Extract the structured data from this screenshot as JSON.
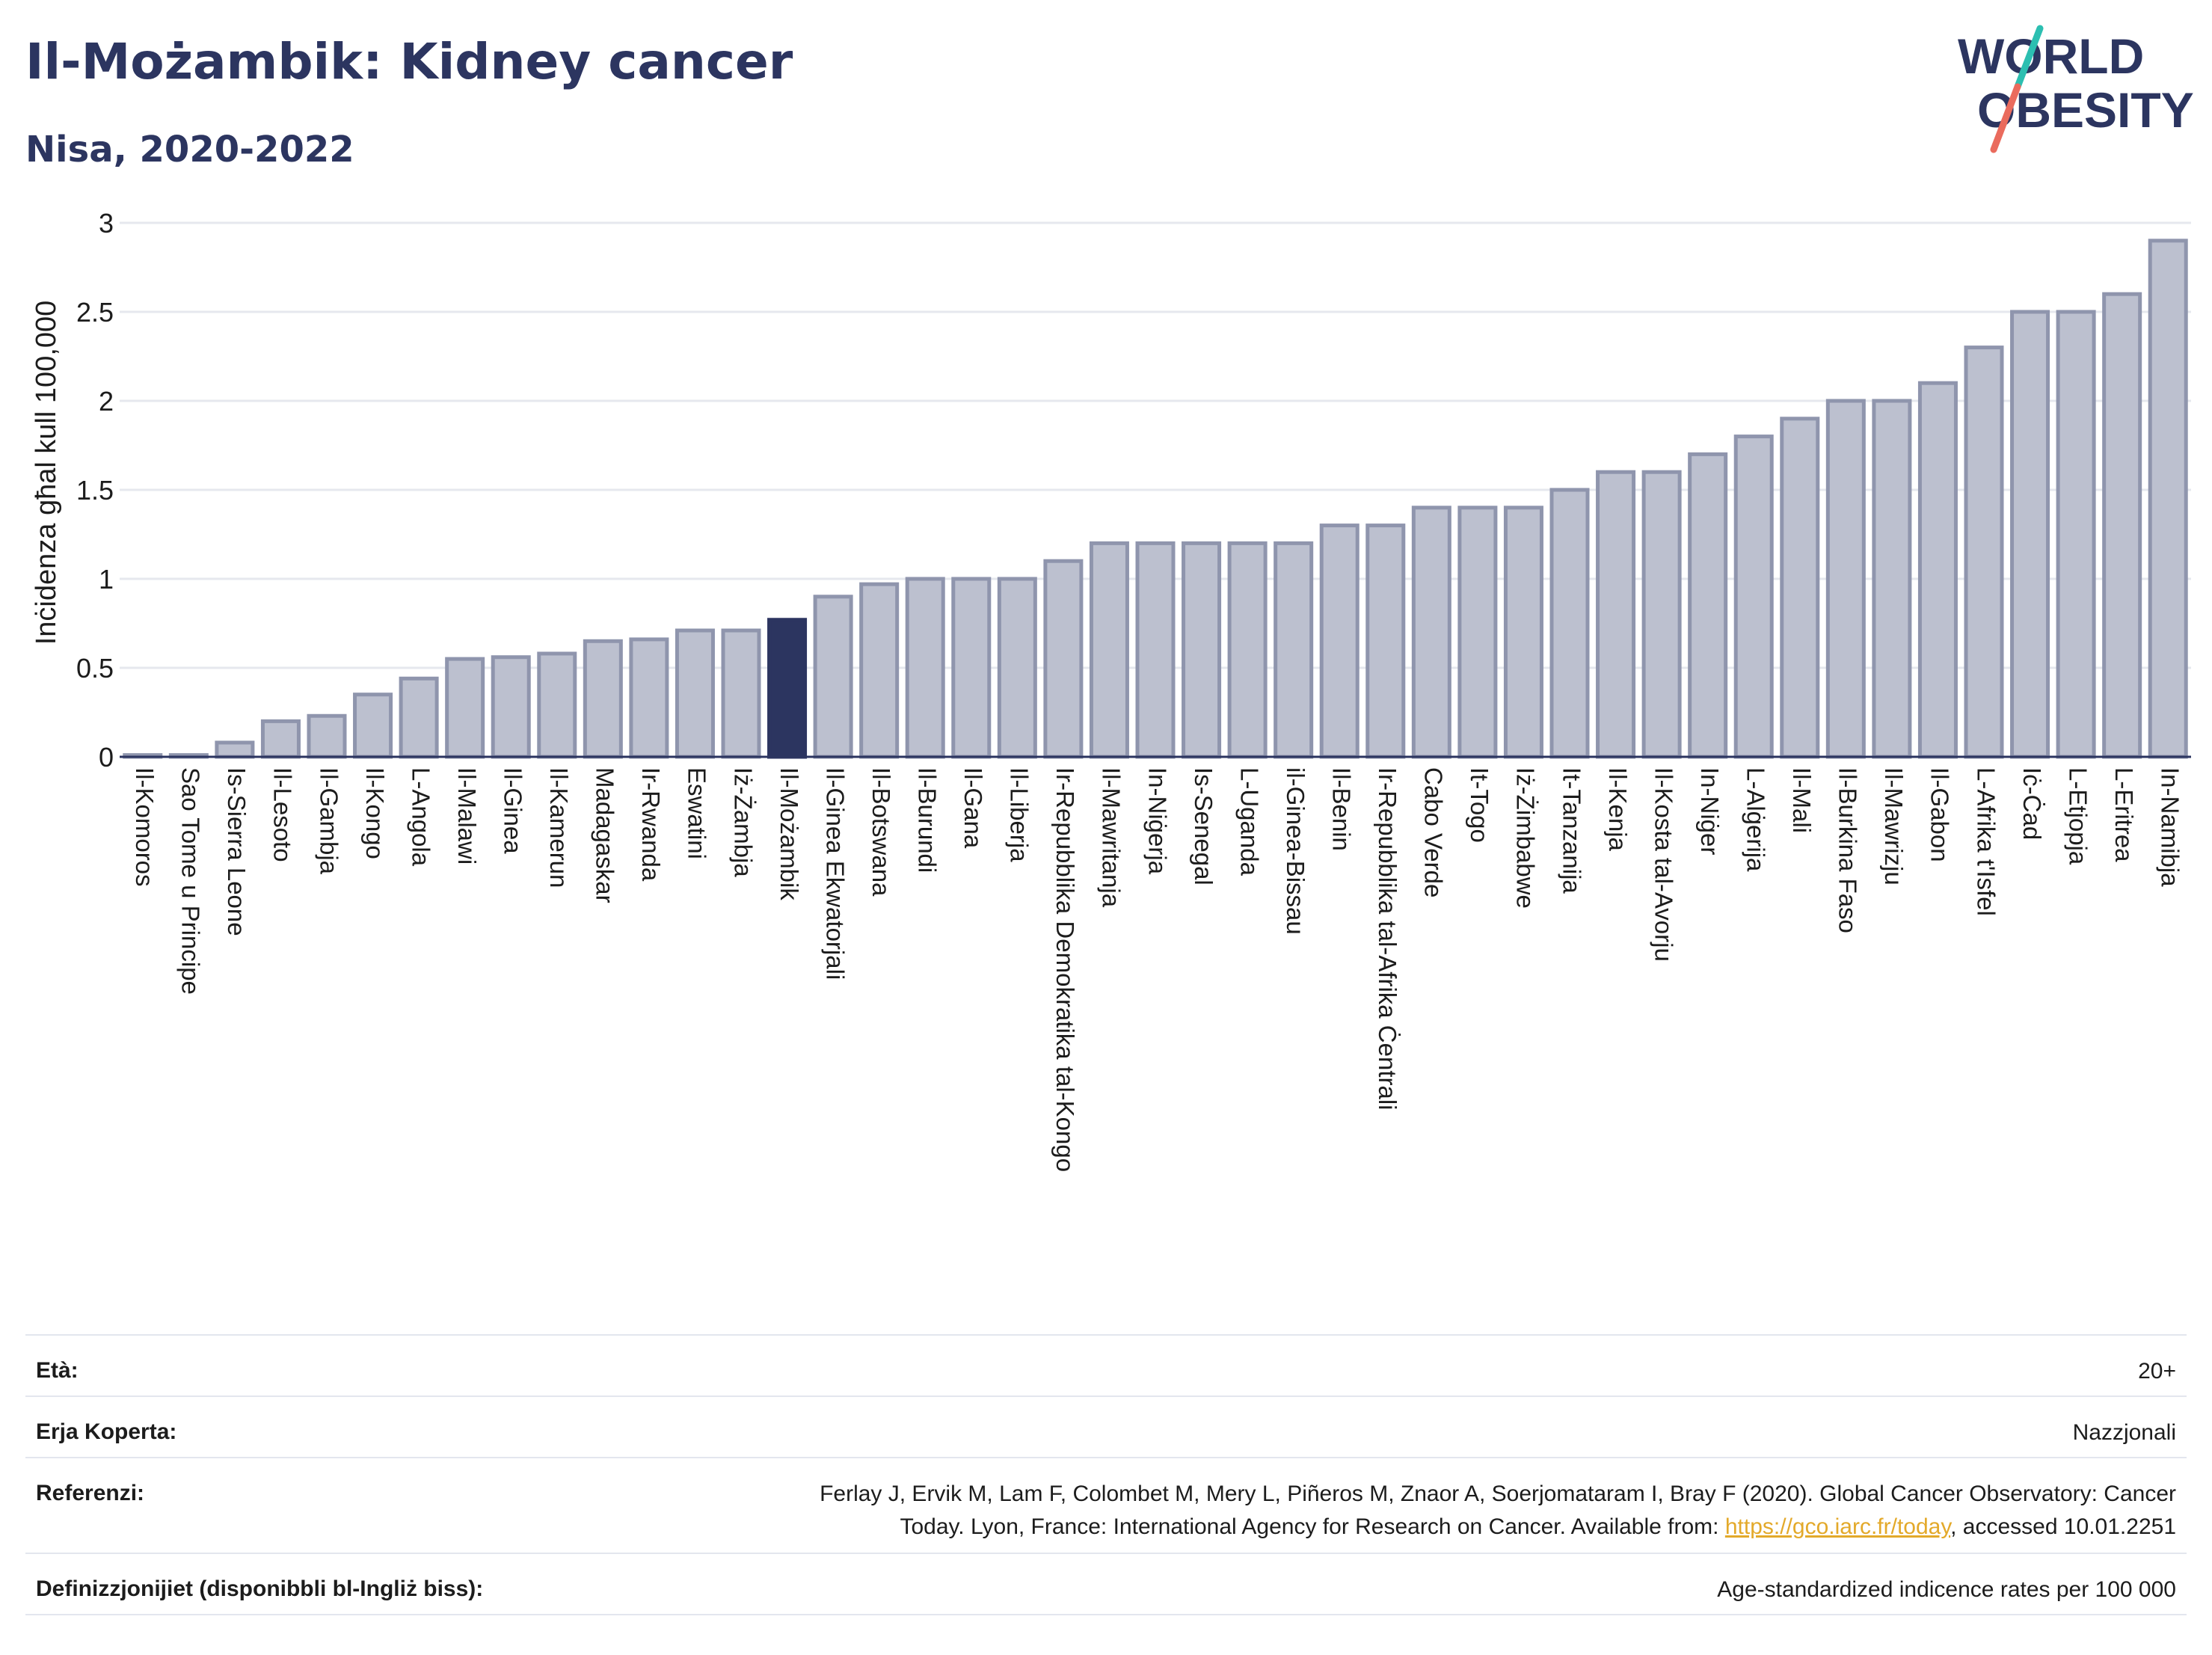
{
  "header": {
    "title": "Il-Możambik: Kidney cancer",
    "subtitle": "Nisa, 2020-2022"
  },
  "logo": {
    "line1": "WORLD",
    "line2": "OBESITY",
    "colors": {
      "text": "#2c3560",
      "slash_teal": "#2cbfb1",
      "slash_coral": "#ea6b5d"
    }
  },
  "chart_data": {
    "type": "bar",
    "ylabel": "Inċidenza għal kull 100,000",
    "ylim": [
      0,
      3
    ],
    "yticks": [
      "0",
      "0.5",
      "1",
      "1.5",
      "2",
      "2.5",
      "3"
    ],
    "grid": true,
    "highlight": "Il-Możambik",
    "colors": {
      "bar": "#bcc0cf",
      "bar_edge": "#8f95ad",
      "highlight": "#2c3560",
      "grid": "#e6e8ee",
      "axis": "#2c3560"
    },
    "categories": [
      "Il-Komoros",
      "Sao Tome u Principe",
      "Is-Sierra Leone",
      "Il-Lesoto",
      "Il-Gambja",
      "Il-Kongo",
      "L-Angola",
      "Il-Malawi",
      "Il-Ginea",
      "Il-Kamerun",
      "Madagaskar",
      "Ir-Rwanda",
      "Eswatini",
      "Iż-Żambja",
      "Il-Możambik",
      "Il-Ginea Ekwatorjali",
      "Il-Botswana",
      "Il-Burundi",
      "Il-Gana",
      "Il-Liberja",
      "Ir-Repubblika Demokratika tal-Kongo",
      "Il-Mawritanja",
      "In-Niġerja",
      "Is-Senegal",
      "L-Uganda",
      "il-Ginea-Bissau",
      "Il-Benin",
      "Ir-Repubblika tal-Afrika Ċentrali",
      "Cabo Verde",
      "It-Togo",
      "Iż-Żimbabwe",
      "It-Tanzanija",
      "Il-Kenja",
      "Il-Kosta tal-Avorju",
      "In-Niġer",
      "L-Alġerija",
      "Il-Mali",
      "Il-Burkina Faso",
      "Il-Mawrizju",
      "Il-Gabon",
      "L-Afrika t'Isfel",
      "Iċ-Ċad",
      "L-Etjopja",
      "L-Eritrea",
      "In-Namibja"
    ],
    "values": [
      0.01,
      0.01,
      0.08,
      0.2,
      0.23,
      0.35,
      0.44,
      0.55,
      0.56,
      0.58,
      0.65,
      0.66,
      0.71,
      0.71,
      0.77,
      0.9,
      0.97,
      1.0,
      1.0,
      1.0,
      1.1,
      1.2,
      1.2,
      1.2,
      1.2,
      1.2,
      1.3,
      1.3,
      1.4,
      1.4,
      1.4,
      1.5,
      1.6,
      1.6,
      1.7,
      1.8,
      1.9,
      2.0,
      2.0,
      2.1,
      2.3,
      2.5,
      2.5,
      2.6,
      2.9
    ]
  },
  "info": {
    "age_label": "Età:",
    "age_value": "20+",
    "coverage_label": "Erja Koperta:",
    "coverage_value": "Nazzjonali",
    "refs_label": "Referenzi:",
    "refs_line1": "Ferlay J, Ervik M, Lam F, Colombet M, Mery L, Piñeros M, Znaor A, Soerjomataram I, Bray F (2020). Global Cancer Observatory: Cancer",
    "refs_line2_pre": "Today. Lyon, France: International Agency for Research on Cancer. Available from: ",
    "refs_link": "https://gco.iarc.fr/today",
    "refs_line2_post": ", accessed 10.01.2251",
    "defs_label": "Definizzjonijiet (disponibbli bl-Ingliż biss):",
    "defs_value": "Age-standardized indicence rates per 100 000"
  }
}
